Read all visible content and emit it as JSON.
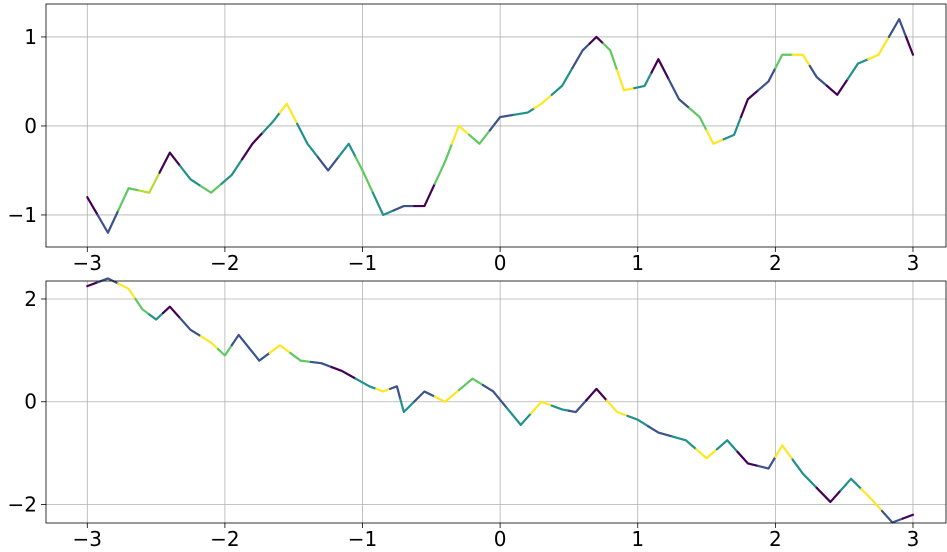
{
  "chart_data": [
    {
      "type": "line",
      "grid": true,
      "xlim": [
        -3.3,
        3.24
      ],
      "ylim": [
        -1.36,
        1.37
      ],
      "xticks": [
        {
          "value": -3,
          "label": "−3"
        },
        {
          "value": -2,
          "label": "−2"
        },
        {
          "value": -1,
          "label": "−1"
        },
        0,
        1,
        2,
        3
      ],
      "yticks": [
        {
          "value": -1,
          "label": "−1"
        },
        0,
        1
      ],
      "x": [
        -3.0,
        -2.85,
        -2.7,
        -2.55,
        -2.4,
        -2.25,
        -2.1,
        -1.95,
        -1.8,
        -1.65,
        -1.55,
        -1.4,
        -1.25,
        -1.1,
        -1.0,
        -0.85,
        -0.7,
        -0.55,
        -0.4,
        -0.3,
        -0.15,
        0.0,
        0.2,
        0.3,
        0.45,
        0.6,
        0.7,
        0.8,
        0.9,
        1.05,
        1.15,
        1.3,
        1.45,
        1.55,
        1.7,
        1.8,
        1.95,
        2.05,
        2.2,
        2.3,
        2.45,
        2.6,
        2.75,
        2.9,
        3.0
      ],
      "values": [
        -0.8,
        -1.2,
        -0.7,
        -0.75,
        -0.3,
        -0.6,
        -0.75,
        -0.55,
        -0.2,
        0.05,
        0.25,
        -0.2,
        -0.5,
        -0.2,
        -0.5,
        -1.0,
        -0.9,
        -0.9,
        -0.4,
        0.0,
        -0.2,
        0.1,
        0.15,
        0.25,
        0.45,
        0.85,
        1.0,
        0.85,
        0.4,
        0.45,
        0.75,
        0.3,
        0.1,
        -0.2,
        -0.1,
        0.3,
        0.5,
        0.8,
        0.8,
        0.55,
        0.35,
        0.7,
        0.8,
        1.2,
        0.8
      ],
      "colors": [
        "#440154",
        "#3b528b",
        "#5ec962",
        "#b5de2b",
        "#440154",
        "#21918c",
        "#5ec962",
        "#21918c",
        "#440154",
        "#21918c",
        "#fde725",
        "#21918c",
        "#3b528b",
        "#21918c",
        "#5ec962",
        "#21918c",
        "#3b528b",
        "#440154",
        "#5ec962",
        "#fde725",
        "#5ec962",
        "#3b528b",
        "#21918c",
        "#fde725",
        "#21918c",
        "#3b528b",
        "#440154",
        "#5ec962",
        "#fde725",
        "#21918c",
        "#440154",
        "#3b528b",
        "#5ec962",
        "#fde725",
        "#21918c",
        "#440154",
        "#3b528b",
        "#5ec962",
        "#fde725",
        "#3b528b",
        "#440154",
        "#21918c",
        "#fde725",
        "#3b528b",
        "#440154"
      ]
    },
    {
      "type": "line",
      "grid": true,
      "xlim": [
        -3.3,
        3.24
      ],
      "ylim": [
        -2.36,
        2.35
      ],
      "xticks": [
        {
          "value": -3,
          "label": "−3"
        },
        {
          "value": -2,
          "label": "−2"
        },
        {
          "value": -1,
          "label": "−1"
        },
        0,
        1,
        2,
        3
      ],
      "yticks": [
        {
          "value": -2,
          "label": "−2"
        },
        0,
        2
      ],
      "x": [
        -3.0,
        -2.85,
        -2.7,
        -2.6,
        -2.5,
        -2.4,
        -2.25,
        -2.1,
        -2.0,
        -1.9,
        -1.75,
        -1.6,
        -1.45,
        -1.3,
        -1.15,
        -0.95,
        -0.85,
        -0.75,
        -0.7,
        -0.55,
        -0.4,
        -0.2,
        -0.05,
        0.15,
        0.3,
        0.45,
        0.55,
        0.7,
        0.85,
        1.0,
        1.15,
        1.35,
        1.5,
        1.65,
        1.8,
        1.95,
        2.05,
        2.2,
        2.4,
        2.55,
        2.7,
        2.85,
        3.0
      ],
      "values": [
        2.25,
        2.4,
        2.2,
        1.8,
        1.6,
        1.85,
        1.4,
        1.15,
        0.9,
        1.3,
        0.8,
        1.1,
        0.8,
        0.75,
        0.6,
        0.3,
        0.2,
        0.3,
        -0.2,
        0.2,
        0.0,
        0.45,
        0.2,
        -0.45,
        0.0,
        -0.15,
        -0.2,
        0.25,
        -0.2,
        -0.35,
        -0.6,
        -0.75,
        -1.1,
        -0.75,
        -1.2,
        -1.3,
        -0.85,
        -1.4,
        -1.95,
        -1.5,
        -1.9,
        -2.35,
        -2.2
      ],
      "colors": [
        "#440154",
        "#3b528b",
        "#fde725",
        "#5ec962",
        "#21918c",
        "#440154",
        "#3b528b",
        "#fde725",
        "#5ec962",
        "#3b528b",
        "#3b528b",
        "#fde725",
        "#5ec962",
        "#3b528b",
        "#440154",
        "#21918c",
        "#fde725",
        "#3b528b",
        "#21918c",
        "#3b528b",
        "#fde725",
        "#5ec962",
        "#3b528b",
        "#21918c",
        "#fde725",
        "#21918c",
        "#3b528b",
        "#440154",
        "#fde725",
        "#21918c",
        "#3b528b",
        "#21918c",
        "#fde725",
        "#21918c",
        "#440154",
        "#3b528b",
        "#fde725",
        "#21918c",
        "#440154",
        "#21918c",
        "#fde725",
        "#3b528b",
        "#440154"
      ]
    }
  ]
}
